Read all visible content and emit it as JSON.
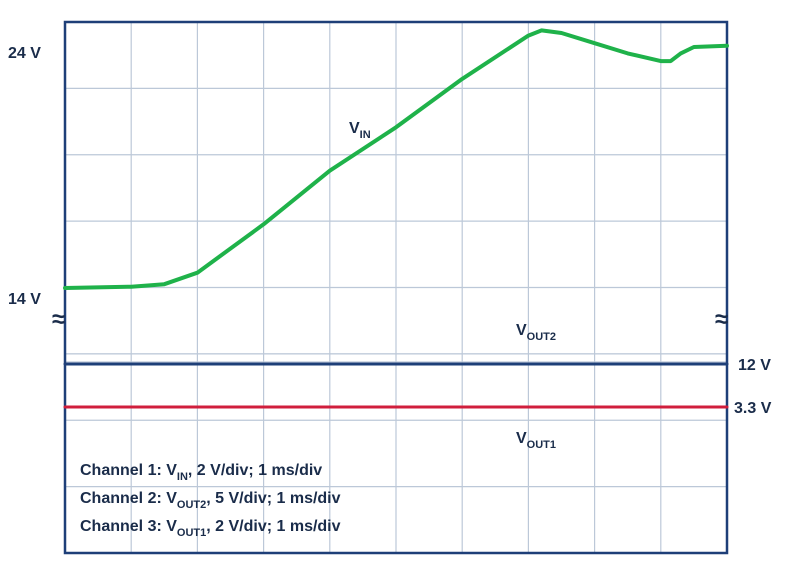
{
  "chart_data": {
    "type": "line",
    "title": "",
    "xlabel": "",
    "ylabel": "",
    "grid": true,
    "divisions": {
      "x": 10,
      "y": 8
    },
    "time_per_div_ms": 1,
    "colors": {
      "vin": "#1fb24a",
      "vout2": "#1e3f78",
      "vout1": "#d01e3c",
      "grid": "#bcc8d8",
      "frame": "#1e3f78",
      "text": "#1a2c4a"
    },
    "series": [
      {
        "name": "V",
        "subscript": "IN",
        "unit": "V",
        "x": [
          0.0,
          1.0,
          1.5,
          2.0,
          3.0,
          4.0,
          5.0,
          6.0,
          7.0,
          7.2,
          7.5,
          8.0,
          8.5,
          9.0,
          9.15,
          9.3,
          9.5,
          10.0
        ],
        "y": [
          14.0,
          14.05,
          14.15,
          14.6,
          16.5,
          18.6,
          20.3,
          22.2,
          23.9,
          24.1,
          24.0,
          23.6,
          23.2,
          22.9,
          22.9,
          23.2,
          23.45,
          23.5
        ]
      },
      {
        "name": "V",
        "subscript": "OUT2",
        "unit": "V",
        "x": [
          0,
          10
        ],
        "y": [
          12,
          12
        ]
      },
      {
        "name": "V",
        "subscript": "OUT1",
        "unit": "V",
        "x": [
          0,
          10
        ],
        "y": [
          3.3,
          3.3
        ]
      }
    ],
    "level_labels": {
      "vin_top": "24 V",
      "vin_bottom": "14 V",
      "vout2": "12 V",
      "vout1": "3.3 V"
    },
    "trace_labels": {
      "vin": {
        "main": "V",
        "sub": "IN"
      },
      "vout2": {
        "main": "V",
        "sub": "OUT2"
      },
      "vout1": {
        "main": "V",
        "sub": "OUT1"
      }
    },
    "legend": [
      {
        "prefix": "Channel 1: V",
        "sub": "IN",
        "suffix": ", 2 V/div; 1 ms/div"
      },
      {
        "prefix": "Channel 2: V",
        "sub": "OUT2",
        "suffix": ", 5 V/div; 1 ms/div"
      },
      {
        "prefix": "Channel 3: V",
        "sub": "OUT1",
        "suffix": ", 2 V/div; 1 ms/div"
      }
    ],
    "break_symbol": "≈"
  }
}
